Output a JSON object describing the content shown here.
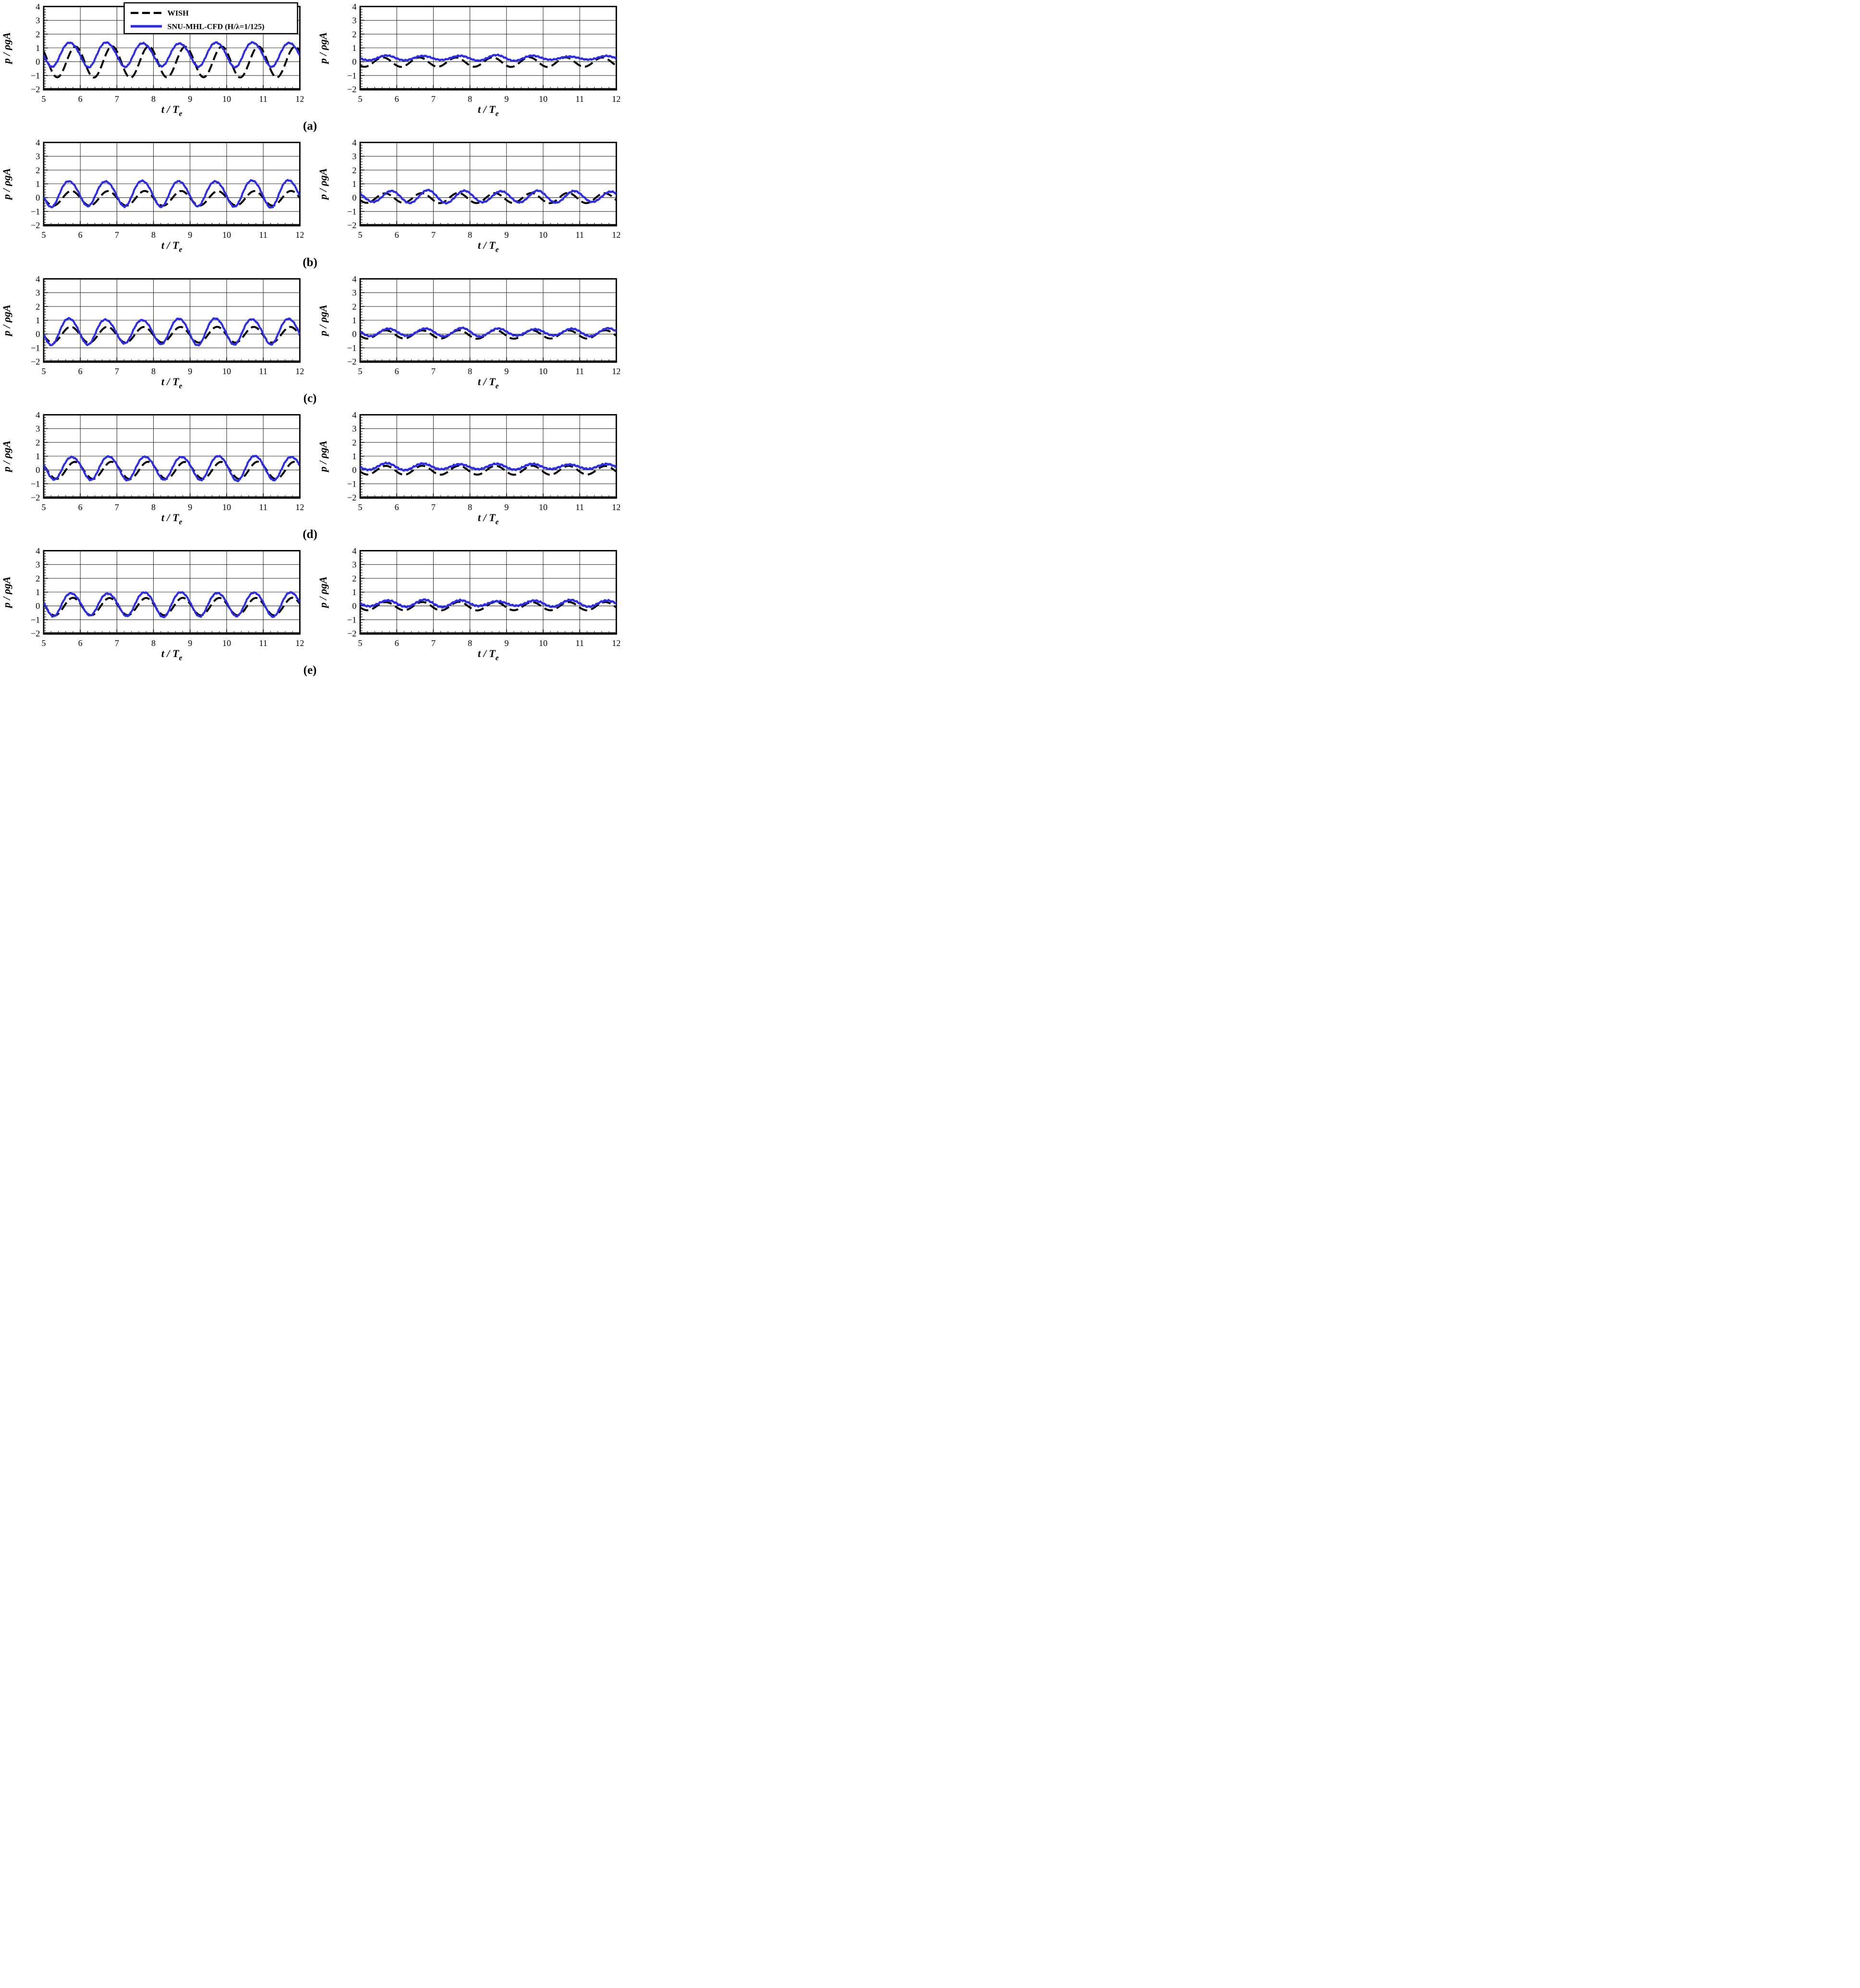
{
  "figure": {
    "rows": [
      {
        "label": "(a)"
      },
      {
        "label": "(b)"
      },
      {
        "label": "(c)"
      },
      {
        "label": "(d)"
      },
      {
        "label": "(e)"
      }
    ]
  },
  "chart_data": {
    "type": "line",
    "title": "",
    "xlabel_main": "t / T",
    "xlabel_sub": "e",
    "ylabel": "p / ρgA",
    "axes": {
      "xlim": [
        5,
        12
      ],
      "ylim": [
        -2,
        4
      ],
      "x_major": [
        5,
        6,
        7,
        8,
        9,
        10,
        11,
        12
      ],
      "x_labels": [
        "5",
        "6",
        "7",
        "8",
        "9",
        "10",
        "11",
        "12"
      ],
      "y_major": [
        -2,
        -1,
        0,
        1,
        2,
        3,
        4
      ],
      "y_labels": [
        "−2",
        "−1",
        "0",
        "1",
        "2",
        "3",
        "4"
      ],
      "minor_step": 0.2,
      "grid": true,
      "xlabel_main": "t / T",
      "xlabel_sub": "e",
      "ylabel": "p / ρgA"
    },
    "legend": {
      "location": "top of first subplot",
      "items": [
        {
          "label": "WISH",
          "color": "#000000",
          "style": "dashed"
        },
        {
          "label": "SNU-MHL-CFD (H/λ=1/125)",
          "color": "#2d2de6",
          "style": "solid"
        }
      ]
    },
    "subplots": [
      {
        "id": "a-left",
        "row_label": "(a)",
        "col": "left",
        "legend": true,
        "series": [
          {
            "name": "WISH",
            "color": "#000000",
            "style": "dashed",
            "waveform": {
              "mean": -0.02,
              "amplitude": 1.12,
              "period": 1,
              "peak_t": 5.87,
              "amp_mod": 0.02,
              "h2": 0,
              "noise": 0,
              "seed": 1
            }
          },
          {
            "name": "SNU-MHL-CFD (H/λ=1/125)",
            "color": "#2d2de6",
            "style": "solid",
            "waveform": {
              "mean": 0.55,
              "amplitude": 0.87,
              "period": 1,
              "peak_t": 5.72,
              "amp_mod": 0.06,
              "h2": 0.07,
              "noise": 0.05,
              "seed": 2
            }
          }
        ]
      },
      {
        "id": "a-right",
        "row_label": "(a)",
        "col": "right",
        "legend": false,
        "series": [
          {
            "name": "WISH",
            "color": "#000000",
            "style": "dashed",
            "waveform": {
              "mean": -0.03,
              "amplitude": 0.34,
              "period": 1,
              "peak_t": 5.62,
              "amp_mod": 0.04,
              "h2": 0,
              "noise": 0,
              "seed": 3
            }
          },
          {
            "name": "SNU-MHL-CFD (H/λ=1/125)",
            "color": "#2d2de6",
            "style": "solid",
            "waveform": {
              "mean": 0.27,
              "amplitude": 0.16,
              "period": 1,
              "peak_t": 5.72,
              "amp_mod": 0.4,
              "h2": 0,
              "noise": 0.05,
              "seed": 4
            }
          }
        ]
      },
      {
        "id": "b-left",
        "row_label": "(b)",
        "col": "left",
        "legend": false,
        "series": [
          {
            "name": "WISH",
            "color": "#000000",
            "style": "dashed",
            "waveform": {
              "mean": -0.05,
              "amplitude": 0.53,
              "period": 1,
              "peak_t": 5.76,
              "amp_mod": 0.02,
              "h2": 0,
              "noise": 0,
              "seed": 5
            }
          },
          {
            "name": "SNU-MHL-CFD (H/λ=1/125)",
            "color": "#2d2de6",
            "style": "solid",
            "waveform": {
              "mean": 0.33,
              "amplitude": 0.93,
              "period": 1,
              "peak_t": 5.7,
              "amp_mod": 0.07,
              "h2": 0.07,
              "noise": 0.05,
              "seed": 6
            }
          }
        ]
      },
      {
        "id": "b-right",
        "row_label": "(b)",
        "col": "right",
        "legend": false,
        "series": [
          {
            "name": "WISH",
            "color": "#000000",
            "style": "dashed",
            "waveform": {
              "mean": -0.03,
              "amplitude": 0.36,
              "period": 1,
              "peak_t": 5.68,
              "amp_mod": 0.05,
              "h2": 0,
              "noise": 0,
              "seed": 7
            }
          },
          {
            "name": "SNU-MHL-CFD (H/λ=1/125)",
            "color": "#2d2de6",
            "style": "solid",
            "waveform": {
              "mean": 0.07,
              "amplitude": 0.42,
              "period": 1,
              "peak_t": 5.85,
              "amp_mod": 0.15,
              "h2": 0,
              "noise": 0.05,
              "seed": 8
            }
          }
        ]
      },
      {
        "id": "c-left",
        "row_label": "(c)",
        "col": "left",
        "legend": false,
        "series": [
          {
            "name": "WISH",
            "color": "#000000",
            "style": "dashed",
            "waveform": {
              "mean": -0.05,
              "amplitude": 0.57,
              "period": 1,
              "peak_t": 5.74,
              "amp_mod": 0.02,
              "h2": 0,
              "noise": 0,
              "seed": 9
            }
          },
          {
            "name": "SNU-MHL-CFD (H/λ=1/125)",
            "color": "#2d2de6",
            "style": "solid",
            "waveform": {
              "mean": 0.22,
              "amplitude": 0.92,
              "period": 1,
              "peak_t": 5.7,
              "amp_mod": 0.09,
              "h2": 0.07,
              "noise": 0.05,
              "seed": 10
            }
          }
        ]
      },
      {
        "id": "c-right",
        "row_label": "(c)",
        "col": "right",
        "legend": false,
        "series": [
          {
            "name": "WISH",
            "color": "#000000",
            "style": "dashed",
            "waveform": {
              "mean": -0.03,
              "amplitude": 0.3,
              "period": 1,
              "peak_t": 5.7,
              "amp_mod": 0.04,
              "h2": 0,
              "noise": 0,
              "seed": 11
            }
          },
          {
            "name": "SNU-MHL-CFD (H/λ=1/125)",
            "color": "#2d2de6",
            "style": "solid",
            "waveform": {
              "mean": 0.13,
              "amplitude": 0.27,
              "period": 1,
              "peak_t": 5.78,
              "amp_mod": 0.2,
              "h2": 0,
              "noise": 0.05,
              "seed": 12
            }
          }
        ]
      },
      {
        "id": "d-left",
        "row_label": "(d)",
        "col": "left",
        "legend": false,
        "series": [
          {
            "name": "WISH",
            "color": "#000000",
            "style": "dashed",
            "waveform": {
              "mean": -0.03,
              "amplitude": 0.62,
              "period": 1,
              "peak_t": 5.85,
              "amp_mod": 0.02,
              "h2": 0,
              "noise": 0,
              "seed": 13
            }
          },
          {
            "name": "SNU-MHL-CFD (H/λ=1/125)",
            "color": "#2d2de6",
            "style": "solid",
            "waveform": {
              "mean": 0.17,
              "amplitude": 0.85,
              "period": 1,
              "peak_t": 5.78,
              "amp_mod": 0.07,
              "h2": 0.07,
              "noise": 0.05,
              "seed": 14
            }
          }
        ]
      },
      {
        "id": "d-right",
        "row_label": "(d)",
        "col": "right",
        "legend": false,
        "series": [
          {
            "name": "WISH",
            "color": "#000000",
            "style": "dashed",
            "waveform": {
              "mean": -0.02,
              "amplitude": 0.32,
              "period": 1,
              "peak_t": 5.7,
              "amp_mod": 0.04,
              "h2": 0,
              "noise": 0,
              "seed": 15
            }
          },
          {
            "name": "SNU-MHL-CFD (H/λ=1/125)",
            "color": "#2d2de6",
            "style": "solid",
            "waveform": {
              "mean": 0.24,
              "amplitude": 0.2,
              "period": 1,
              "peak_t": 5.72,
              "amp_mod": 0.3,
              "h2": 0,
              "noise": 0.06,
              "seed": 16
            }
          }
        ]
      },
      {
        "id": "e-left",
        "row_label": "(e)",
        "col": "left",
        "legend": false,
        "series": [
          {
            "name": "WISH",
            "color": "#000000",
            "style": "dashed",
            "waveform": {
              "mean": -0.05,
              "amplitude": 0.63,
              "period": 1,
              "peak_t": 5.8,
              "amp_mod": 0.02,
              "h2": 0,
              "noise": 0,
              "seed": 17
            }
          },
          {
            "name": "SNU-MHL-CFD (H/λ=1/125)",
            "color": "#2d2de6",
            "style": "solid",
            "waveform": {
              "mean": 0.15,
              "amplitude": 0.85,
              "period": 1,
              "peak_t": 5.76,
              "amp_mod": 0.08,
              "h2": 0.07,
              "noise": 0.05,
              "seed": 18
            }
          }
        ]
      },
      {
        "id": "e-right",
        "row_label": "(e)",
        "col": "right",
        "legend": false,
        "series": [
          {
            "name": "WISH",
            "color": "#000000",
            "style": "dashed",
            "waveform": {
              "mean": -0.02,
              "amplitude": 0.3,
              "period": 1,
              "peak_t": 5.7,
              "amp_mod": 0.04,
              "h2": 0,
              "noise": 0,
              "seed": 19
            }
          },
          {
            "name": "SNU-MHL-CFD (H/λ=1/125)",
            "color": "#2d2de6",
            "style": "solid",
            "waveform": {
              "mean": 0.18,
              "amplitude": 0.22,
              "period": 1,
              "peak_t": 5.75,
              "amp_mod": 0.3,
              "h2": 0,
              "noise": 0.06,
              "seed": 20
            }
          }
        ]
      }
    ]
  }
}
